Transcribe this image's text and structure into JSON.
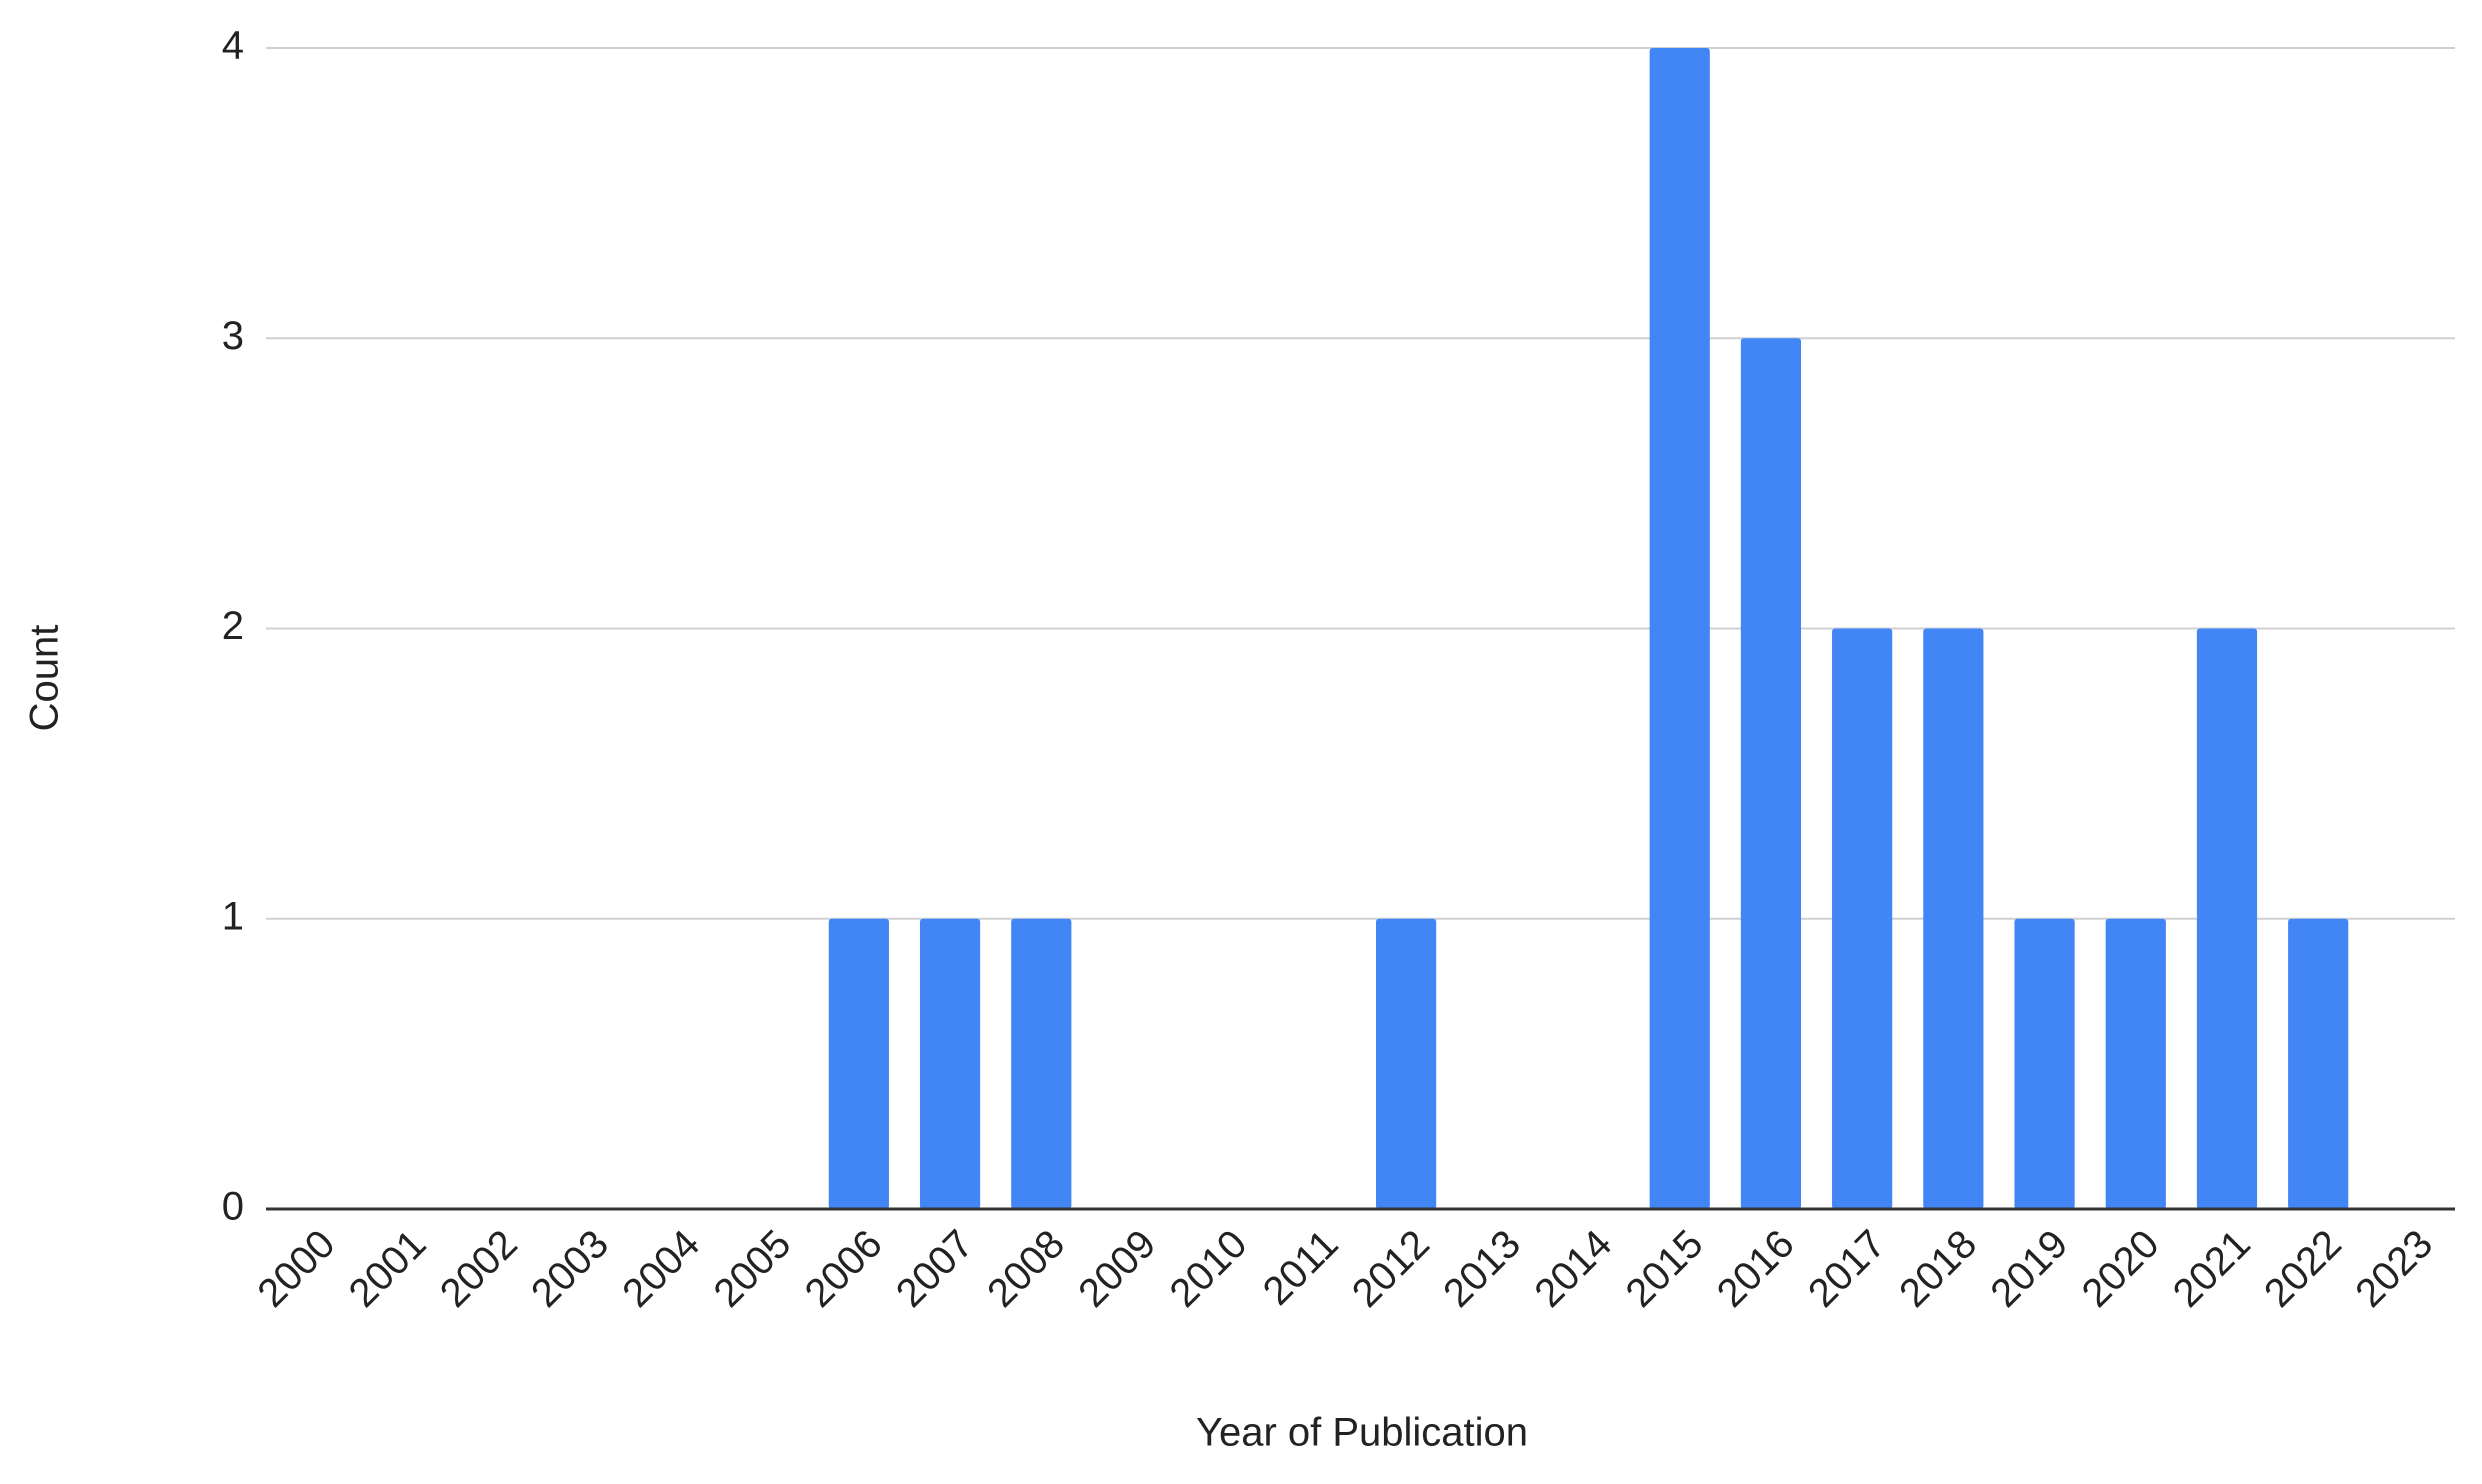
{
  "chart_data": {
    "type": "bar",
    "x_label": "Year of Publication",
    "y_label": "Count",
    "categories": [
      "2000",
      "2001",
      "2002",
      "2003",
      "2004",
      "2005",
      "2006",
      "2007",
      "2008",
      "2009",
      "2010",
      "2011",
      "2012",
      "2013",
      "2014",
      "2015",
      "2016",
      "2017",
      "2018",
      "2019",
      "2020",
      "2021",
      "2022",
      "2023"
    ],
    "values": [
      0,
      0,
      0,
      0,
      0,
      0,
      1,
      1,
      1,
      0,
      0,
      0,
      1,
      0,
      0,
      4,
      3,
      2,
      2,
      1,
      1,
      2,
      1,
      0
    ],
    "color": "#4285f4",
    "ylim": [
      0,
      4
    ],
    "yticks": [
      0,
      1,
      2,
      3,
      4
    ],
    "grid": true
  }
}
